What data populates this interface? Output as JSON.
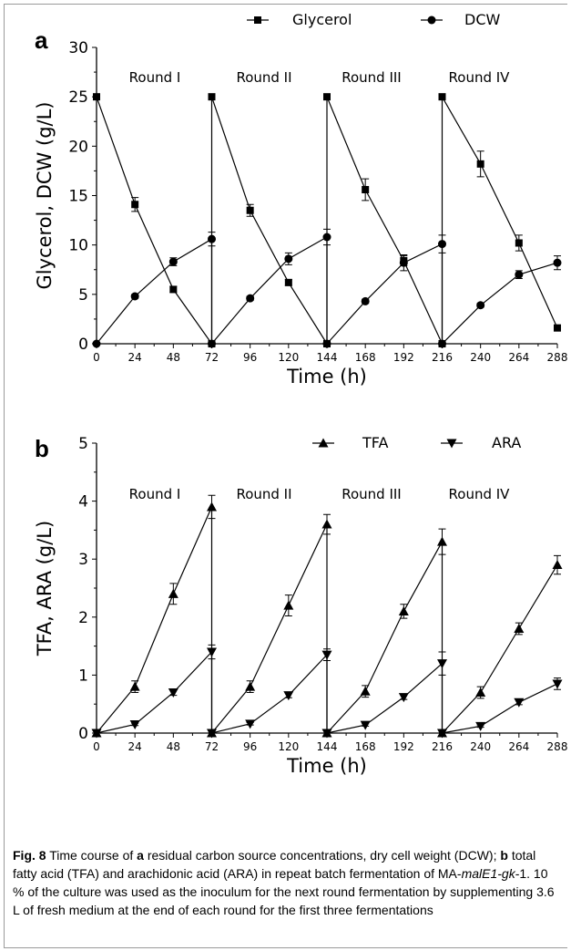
{
  "chart_data": [
    {
      "type": "line",
      "panel_label": "a",
      "xlabel": "Time (h)",
      "ylabel": "Glycerol, DCW (g/L)",
      "xlim": [
        0,
        288
      ],
      "ylim": [
        0,
        30
      ],
      "xticks": [
        0,
        24,
        48,
        72,
        96,
        120,
        144,
        168,
        192,
        216,
        240,
        264,
        288
      ],
      "yticks": [
        0,
        5,
        10,
        15,
        20,
        25,
        30
      ],
      "legend_position": "top",
      "rounds": [
        "Round I",
        "Round II",
        "Round III",
        "Round IV"
      ],
      "series": [
        {
          "name": "Glycerol",
          "marker": "square",
          "points": [
            {
              "x": 0,
              "y": 25.0,
              "err": 0
            },
            {
              "x": 24,
              "y": 14.1,
              "err": 0.7
            },
            {
              "x": 48,
              "y": 5.5,
              "err": 0.3
            },
            {
              "x": 72,
              "y": 0,
              "err": 0
            },
            {
              "x": 72,
              "y": 25.0,
              "err": 0
            },
            {
              "x": 96,
              "y": 13.5,
              "err": 0.6
            },
            {
              "x": 120,
              "y": 6.2,
              "err": 0.3
            },
            {
              "x": 144,
              "y": 0,
              "err": 0
            },
            {
              "x": 144,
              "y": 25.0,
              "err": 0
            },
            {
              "x": 168,
              "y": 15.6,
              "err": 1.1
            },
            {
              "x": 192,
              "y": 8.4,
              "err": 0.5
            },
            {
              "x": 216,
              "y": 0,
              "err": 0
            },
            {
              "x": 216,
              "y": 25.0,
              "err": 0
            },
            {
              "x": 240,
              "y": 18.2,
              "err": 1.3
            },
            {
              "x": 264,
              "y": 10.2,
              "err": 0.8
            },
            {
              "x": 288,
              "y": 1.6,
              "err": 0.2
            }
          ]
        },
        {
          "name": "DCW",
          "marker": "circle",
          "points": [
            {
              "x": 0,
              "y": 0,
              "err": 0
            },
            {
              "x": 24,
              "y": 4.8,
              "err": 0.2
            },
            {
              "x": 48,
              "y": 8.3,
              "err": 0.4
            },
            {
              "x": 72,
              "y": 10.6,
              "err": 0.7
            },
            {
              "x": 72,
              "y": 0,
              "err": 0
            },
            {
              "x": 96,
              "y": 4.6,
              "err": 0.2
            },
            {
              "x": 120,
              "y": 8.6,
              "err": 0.6
            },
            {
              "x": 144,
              "y": 10.8,
              "err": 0.8
            },
            {
              "x": 144,
              "y": 0,
              "err": 0
            },
            {
              "x": 168,
              "y": 4.3,
              "err": 0.2
            },
            {
              "x": 192,
              "y": 8.2,
              "err": 0.8
            },
            {
              "x": 216,
              "y": 10.1,
              "err": 0.9
            },
            {
              "x": 216,
              "y": 0,
              "err": 0
            },
            {
              "x": 240,
              "y": 3.9,
              "err": 0.2
            },
            {
              "x": 264,
              "y": 7.0,
              "err": 0.4
            },
            {
              "x": 288,
              "y": 8.2,
              "err": 0.7
            }
          ]
        }
      ]
    },
    {
      "type": "line",
      "panel_label": "b",
      "xlabel": "Time (h)",
      "ylabel": "TFA, ARA (g/L)",
      "xlim": [
        0,
        288
      ],
      "ylim": [
        0,
        5
      ],
      "xticks": [
        0,
        24,
        48,
        72,
        96,
        120,
        144,
        168,
        192,
        216,
        240,
        264,
        288
      ],
      "yticks": [
        0,
        1,
        2,
        3,
        4,
        5
      ],
      "legend_position": "top",
      "rounds": [
        "Round I",
        "Round II",
        "Round III",
        "Round IV"
      ],
      "series": [
        {
          "name": "TFA",
          "marker": "triangle-up",
          "points": [
            {
              "x": 0,
              "y": 0,
              "err": 0
            },
            {
              "x": 24,
              "y": 0.8,
              "err": 0.1
            },
            {
              "x": 48,
              "y": 2.4,
              "err": 0.18
            },
            {
              "x": 72,
              "y": 3.9,
              "err": 0.2
            },
            {
              "x": 72,
              "y": 0,
              "err": 0
            },
            {
              "x": 96,
              "y": 0.8,
              "err": 0.1
            },
            {
              "x": 120,
              "y": 2.2,
              "err": 0.18
            },
            {
              "x": 144,
              "y": 3.6,
              "err": 0.17
            },
            {
              "x": 144,
              "y": 0,
              "err": 0
            },
            {
              "x": 168,
              "y": 0.72,
              "err": 0.1
            },
            {
              "x": 192,
              "y": 2.1,
              "err": 0.12
            },
            {
              "x": 216,
              "y": 3.3,
              "err": 0.22
            },
            {
              "x": 216,
              "y": 0,
              "err": 0
            },
            {
              "x": 240,
              "y": 0.7,
              "err": 0.1
            },
            {
              "x": 264,
              "y": 1.8,
              "err": 0.1
            },
            {
              "x": 288,
              "y": 2.9,
              "err": 0.16
            }
          ]
        },
        {
          "name": "ARA",
          "marker": "triangle-down",
          "points": [
            {
              "x": 0,
              "y": 0,
              "err": 0
            },
            {
              "x": 24,
              "y": 0.15,
              "err": 0.02
            },
            {
              "x": 48,
              "y": 0.7,
              "err": 0.05
            },
            {
              "x": 72,
              "y": 1.4,
              "err": 0.12
            },
            {
              "x": 72,
              "y": 0,
              "err": 0
            },
            {
              "x": 96,
              "y": 0.16,
              "err": 0.02
            },
            {
              "x": 120,
              "y": 0.65,
              "err": 0.04
            },
            {
              "x": 144,
              "y": 1.35,
              "err": 0.1
            },
            {
              "x": 144,
              "y": 0,
              "err": 0
            },
            {
              "x": 168,
              "y": 0.14,
              "err": 0.02
            },
            {
              "x": 192,
              "y": 0.62,
              "err": 0.04
            },
            {
              "x": 216,
              "y": 1.2,
              "err": 0.2
            },
            {
              "x": 216,
              "y": 0,
              "err": 0
            },
            {
              "x": 240,
              "y": 0.12,
              "err": 0.02
            },
            {
              "x": 264,
              "y": 0.53,
              "err": 0.04
            },
            {
              "x": 288,
              "y": 0.85,
              "err": 0.1
            }
          ]
        }
      ]
    }
  ],
  "caption": {
    "label": "Fig. 8",
    "text_1": "Time course of",
    "bold_a": "a",
    "text_2": "residual carbon source concentrations, dry cell weight (DCW);",
    "bold_b": "b",
    "text_3": "total fatty acid (TFA) and arachidonic acid (ARA) in repeat batch fermentation of MA-",
    "strain_italic": "malE1-gk",
    "text_4": "-1. 10 % of the culture was used as the inoculum for the next round fermentation by supplementing 3.6 L of fresh medium at the end of each round for the first three fermentations"
  }
}
